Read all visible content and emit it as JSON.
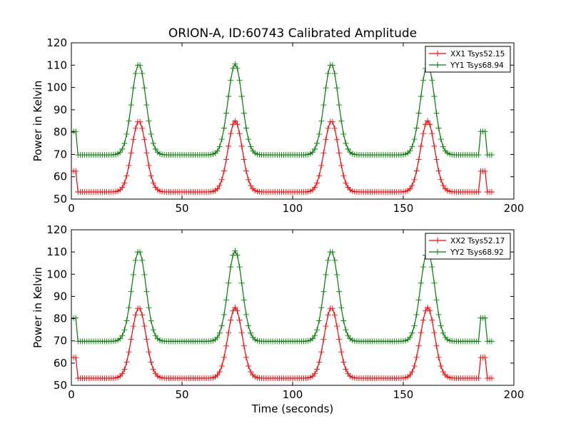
{
  "title": "ORION-A, ID:60743 Calibrated Amplitude",
  "xlabel": "Time (seconds)",
  "chart_data": [
    {
      "type": "line",
      "title": "ORION-A, ID:60743 Calibrated Amplitude",
      "xlabel": "",
      "ylabel": "Power in Kelvin",
      "xlim": [
        0,
        200
      ],
      "ylim": [
        50,
        120
      ],
      "xticks": [
        0,
        50,
        100,
        150,
        200
      ],
      "yticks": [
        50,
        60,
        70,
        80,
        90,
        100,
        110,
        120
      ],
      "legend_position": "top-right",
      "series": [
        {
          "name": "XX1 Tsys52.15",
          "color": "#ff0000",
          "marker": "plus",
          "baseline": 53.2,
          "peak": 85,
          "cal": 62.5
        },
        {
          "name": "YY1 Tsys68.94",
          "color": "#007f00",
          "marker": "plus",
          "baseline": 69.8,
          "peak": 110.5,
          "cal": 80.3
        }
      ],
      "peak_times": [
        30.5,
        74,
        117.5,
        161
      ],
      "peak_width": 3.2,
      "cal_windows": [
        [
          0,
          2
        ],
        [
          185,
          187
        ]
      ],
      "x_end": 190
    },
    {
      "type": "line",
      "title": "",
      "xlabel": "Time (seconds)",
      "ylabel": "Power in Kelvin",
      "xlim": [
        0,
        200
      ],
      "ylim": [
        50,
        120
      ],
      "xticks": [
        0,
        50,
        100,
        150,
        200
      ],
      "yticks": [
        50,
        60,
        70,
        80,
        90,
        100,
        110,
        120
      ],
      "legend_position": "top-right",
      "series": [
        {
          "name": "XX2 Tsys52.17",
          "color": "#ff0000",
          "marker": "plus",
          "baseline": 53.2,
          "peak": 85,
          "cal": 62.5
        },
        {
          "name": "YY2 Tsys68.92",
          "color": "#007f00",
          "marker": "plus",
          "baseline": 69.8,
          "peak": 110.5,
          "cal": 80.3
        }
      ],
      "peak_times": [
        30.5,
        74,
        117.5,
        161
      ],
      "peak_width": 3.2,
      "cal_windows": [
        [
          0,
          2
        ],
        [
          185,
          187
        ]
      ],
      "x_end": 190
    }
  ]
}
